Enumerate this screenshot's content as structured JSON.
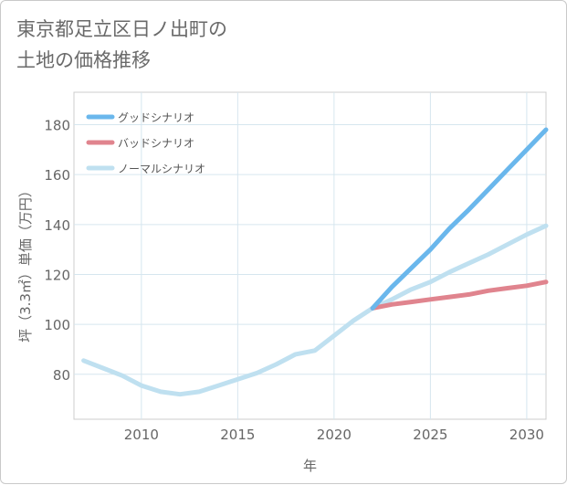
{
  "title": "東京都足立区日ノ出町の\n土地の価格推移",
  "chart_data": {
    "type": "line",
    "title": "東京都足立区日ノ出町の\n土地の価格推移",
    "xlabel": "年",
    "ylabel": "坪（3.3㎡）単価（万円）",
    "xlim": [
      2006.5,
      2031
    ],
    "ylim": [
      62,
      193
    ],
    "xticks": [
      2010,
      2015,
      2020,
      2025,
      2030
    ],
    "yticks": [
      80,
      100,
      120,
      140,
      160,
      180
    ],
    "grid": true,
    "legend_position": "top-left",
    "series": [
      {
        "name": "ノーマルシナリオ",
        "color": "#bfe0f0",
        "x": [
          2007,
          2008,
          2009,
          2010,
          2011,
          2012,
          2013,
          2014,
          2015,
          2016,
          2017,
          2018,
          2019,
          2020,
          2021,
          2022,
          2023,
          2024,
          2025,
          2026,
          2027,
          2028,
          2029,
          2030,
          2031
        ],
        "values": [
          85.5,
          82.5,
          79.5,
          75.5,
          73,
          72,
          73,
          75.5,
          78,
          80.5,
          84,
          88,
          89.5,
          95.5,
          101.5,
          106.5,
          110,
          114,
          117,
          121,
          124.5,
          128,
          132,
          136,
          139.5
        ]
      },
      {
        "name": "バッドシナリオ",
        "color": "#e0848e",
        "x": [
          2022,
          2023,
          2024,
          2025,
          2026,
          2027,
          2028,
          2029,
          2030,
          2031
        ],
        "values": [
          106.5,
          108,
          109,
          110,
          111,
          112,
          113.5,
          114.5,
          115.5,
          117
        ]
      },
      {
        "name": "グッドシナリオ",
        "color": "#6ab7ec",
        "x": [
          2022,
          2023,
          2024,
          2025,
          2026,
          2027,
          2028,
          2029,
          2030,
          2031
        ],
        "values": [
          106.5,
          115,
          122.5,
          130,
          138.5,
          146,
          154,
          162,
          170,
          178
        ]
      }
    ],
    "legend": [
      {
        "name": "グッドシナリオ",
        "color": "#6ab7ec"
      },
      {
        "name": "バッドシナリオ",
        "color": "#e0848e"
      },
      {
        "name": "ノーマルシナリオ",
        "color": "#bfe0f0"
      }
    ]
  }
}
